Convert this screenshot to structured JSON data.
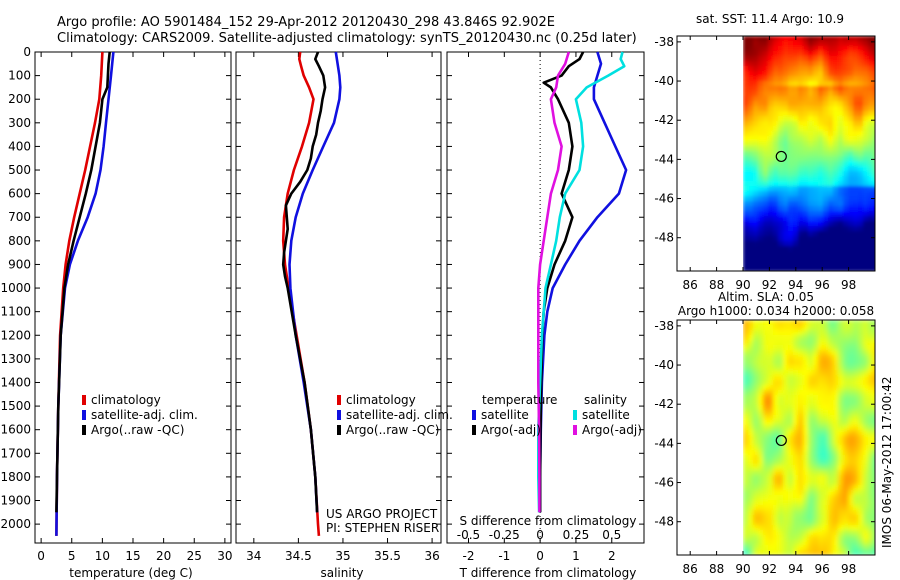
{
  "header": {
    "line1": "Argo profile: AO 5901484_152 29-Apr-2012 20120430_298 43.846S 92.902E",
    "line2": "Climatology: CARS2009. Satellite-adjusted climatology: synTS_20120430.nc (0.25d later)"
  },
  "colors": {
    "climatology": "#e00000",
    "satellite": "#1010e0",
    "argo": "#000000",
    "sat_s": "#00e0e0",
    "argo_s": "#e010e0"
  },
  "chart_data": [
    {
      "id": "temperature",
      "type": "line",
      "xlabel": "temperature (deg C)",
      "xlim": [
        -1,
        31
      ],
      "xticks": [
        "0",
        "5",
        "10",
        "15",
        "20",
        "25",
        "30"
      ],
      "xtick_values": [
        0,
        5,
        10,
        15,
        20,
        25,
        30
      ],
      "ylim": [
        2080,
        0
      ],
      "yticks": [
        "0",
        "100",
        "200",
        "300",
        "400",
        "500",
        "600",
        "700",
        "800",
        "900",
        "1000",
        "1100",
        "1200",
        "1300",
        "1400",
        "1500",
        "1600",
        "1700",
        "1800",
        "1900",
        "2000"
      ],
      "ytick_values": [
        0,
        100,
        200,
        300,
        400,
        500,
        600,
        700,
        800,
        900,
        1000,
        1100,
        1200,
        1300,
        1400,
        1500,
        1600,
        1700,
        1800,
        1900,
        2000
      ],
      "legend": [
        "climatology",
        "satellite-adj. clim.",
        "Argo(..raw -QC)"
      ],
      "series": [
        {
          "name": "climatology",
          "color": "#e00000",
          "depth": [
            0,
            50,
            100,
            200,
            300,
            400,
            500,
            600,
            700,
            800,
            900,
            1000,
            1200,
            1500,
            1800,
            2050
          ],
          "x": [
            10.0,
            9.9,
            9.8,
            9.5,
            8.8,
            8.0,
            7.2,
            6.3,
            5.4,
            4.6,
            4.0,
            3.6,
            3.1,
            2.8,
            2.6,
            2.5
          ]
        },
        {
          "name": "satellite-adj. clim.",
          "color": "#1010e0",
          "depth": [
            0,
            50,
            100,
            200,
            300,
            400,
            500,
            600,
            700,
            800,
            900,
            1000,
            1200,
            1500,
            1800,
            2050
          ],
          "x": [
            11.8,
            11.6,
            11.4,
            11.0,
            10.6,
            10.2,
            9.7,
            8.9,
            7.6,
            6.0,
            4.7,
            3.9,
            3.2,
            2.8,
            2.6,
            2.5
          ]
        },
        {
          "name": "Argo(..raw -QC)",
          "color": "#000000",
          "depth": [
            0,
            50,
            100,
            150,
            200,
            300,
            400,
            500,
            600,
            700,
            800,
            900,
            1000,
            1200,
            1500,
            1800,
            1950
          ],
          "x": [
            11.2,
            11.0,
            10.9,
            10.8,
            10.0,
            9.6,
            8.9,
            8.2,
            7.3,
            6.3,
            5.3,
            4.4,
            3.8,
            3.2,
            2.8,
            2.6,
            2.5
          ]
        }
      ]
    },
    {
      "id": "salinity",
      "type": "line",
      "xlabel": "salinity",
      "xlim": [
        33.8,
        36.1
      ],
      "xticks": [
        "34",
        "34.5",
        "35",
        "35.5",
        "36"
      ],
      "xtick_values": [
        34,
        34.5,
        35,
        35.5,
        36
      ],
      "ylim": [
        2080,
        0
      ],
      "legend": [
        "climatology",
        "satellite-adj. clim.",
        "Argo(..raw -QC)"
      ],
      "annotation": [
        "US ARGO PROJECT",
        "PI: STEPHEN RISER"
      ],
      "series": [
        {
          "name": "climatology",
          "color": "#e00000",
          "depth": [
            0,
            30,
            60,
            100,
            150,
            200,
            300,
            400,
            500,
            600,
            700,
            800,
            900,
            1000,
            1200,
            1400,
            1600,
            1800,
            2000,
            2050
          ],
          "x": [
            34.52,
            34.51,
            34.53,
            34.56,
            34.62,
            34.67,
            34.62,
            34.54,
            34.45,
            34.38,
            34.34,
            34.33,
            34.35,
            34.39,
            34.48,
            34.57,
            34.64,
            34.69,
            34.72,
            34.73
          ]
        },
        {
          "name": "satellite-adj. clim.",
          "color": "#1010e0",
          "depth": [
            0,
            50,
            100,
            150,
            200,
            300,
            400,
            500,
            600,
            700,
            800,
            900,
            1000,
            1200,
            1400,
            1600,
            1800,
            1950
          ],
          "x": [
            34.92,
            34.94,
            34.96,
            34.97,
            34.96,
            34.9,
            34.78,
            34.66,
            34.55,
            34.47,
            34.42,
            34.4,
            34.41,
            34.47,
            34.56,
            34.64,
            34.69,
            34.71
          ]
        },
        {
          "name": "Argo(..raw -QC)",
          "color": "#000000",
          "depth": [
            0,
            30,
            60,
            100,
            150,
            200,
            250,
            300,
            350,
            400,
            450,
            500,
            550,
            600,
            650,
            700,
            750,
            800,
            850,
            900,
            950,
            1000,
            1200,
            1400,
            1600,
            1800,
            1950
          ],
          "x": [
            34.72,
            34.69,
            34.73,
            34.78,
            34.8,
            34.77,
            34.75,
            34.72,
            34.7,
            34.66,
            34.64,
            34.6,
            34.52,
            34.42,
            34.36,
            34.37,
            34.38,
            34.36,
            34.34,
            34.33,
            34.35,
            34.38,
            34.47,
            34.57,
            34.64,
            34.69,
            34.71
          ]
        }
      ]
    },
    {
      "id": "differences",
      "type": "line",
      "xlabel": "T difference from climatology",
      "xlabel2": "S difference from climatology",
      "xlim": [
        -2.6,
        2.9
      ],
      "xticks": [
        "-2",
        "-1",
        "0",
        "1",
        "2"
      ],
      "xtick_values": [
        -2,
        -1,
        0,
        1,
        2
      ],
      "xticks2": [
        "-0.5",
        "-0.25",
        "0",
        "0.25",
        "0.5"
      ],
      "xtick2_values": [
        -0.5,
        -0.25,
        0,
        0.25,
        0.5
      ],
      "ylim": [
        2080,
        0
      ],
      "legend_titles": [
        "temperature",
        "salinity"
      ],
      "legend_t": [
        "satellite",
        "Argo(-adj)"
      ],
      "legend_s": [
        "satellite",
        "Argo(-adj)"
      ],
      "series": [
        {
          "name": "T satellite",
          "color": "#1010e0",
          "depth": [
            0,
            50,
            100,
            150,
            200,
            300,
            400,
            500,
            600,
            700,
            800,
            900,
            1000,
            1100,
            1200,
            1400,
            1600,
            1800,
            1950
          ],
          "x": [
            1.6,
            1.7,
            1.6,
            1.5,
            1.5,
            1.8,
            2.1,
            2.4,
            2.2,
            1.6,
            1.1,
            0.7,
            0.35,
            0.2,
            0.12,
            0.05,
            0.02,
            0.0,
            0.0
          ]
        },
        {
          "name": "T Argo(-adj)",
          "color": "#000000",
          "depth": [
            0,
            30,
            60,
            100,
            130,
            150,
            200,
            300,
            400,
            500,
            600,
            700,
            800,
            900,
            1000,
            1100,
            1200,
            1400,
            1600,
            1800,
            1950
          ],
          "x": [
            1.2,
            1.1,
            0.8,
            0.6,
            0.1,
            0.3,
            0.5,
            0.8,
            0.9,
            0.8,
            0.6,
            0.9,
            0.7,
            0.4,
            0.2,
            0.1,
            0.06,
            0.03,
            0.01,
            0.0,
            0.0
          ]
        },
        {
          "name": "S satellite",
          "color": "#00e0e0",
          "depth": [
            0,
            30,
            60,
            100,
            150,
            200,
            300,
            400,
            500,
            600,
            700,
            800,
            900,
            1000,
            1200,
            1400,
            1600,
            1800,
            1950
          ],
          "x": [
            2.3,
            2.25,
            2.35,
            1.9,
            1.3,
            1.0,
            1.15,
            1.2,
            1.1,
            0.7,
            0.55,
            0.45,
            0.3,
            0.15,
            0.05,
            0.0,
            -0.05,
            -0.05,
            -0.03
          ]
        },
        {
          "name": "S Argo(-adj)",
          "color": "#e010e0",
          "depth": [
            0,
            50,
            100,
            150,
            200,
            300,
            400,
            500,
            600,
            700,
            800,
            900,
            1000,
            1200,
            1400,
            1600,
            1800,
            1950
          ],
          "x": [
            0.8,
            0.7,
            0.5,
            0.45,
            0.3,
            0.4,
            0.6,
            0.5,
            0.3,
            0.2,
            0.1,
            0.0,
            -0.05,
            -0.05,
            -0.05,
            -0.03,
            -0.02,
            -0.02
          ]
        }
      ]
    },
    {
      "id": "sst_map",
      "type": "heatmap",
      "title": "sat. SST: 11.4  Argo: 10.9",
      "xticks": [
        "86",
        "88",
        "90",
        "92",
        "94",
        "96",
        "98"
      ],
      "xtick_values": [
        86,
        88,
        90,
        92,
        94,
        96,
        98
      ],
      "yticks": [
        "-38",
        "-40",
        "-42",
        "-44",
        "-46",
        "-48"
      ],
      "ytick_values": [
        -38,
        -40,
        -42,
        -44,
        -46,
        -48
      ],
      "xlim": [
        85,
        100
      ],
      "ylim": [
        -49.7,
        -37.7
      ],
      "data_lon": [
        90,
        100
      ],
      "marker": {
        "lon": 92.9,
        "lat": -43.85
      }
    },
    {
      "id": "sla_map",
      "type": "heatmap",
      "title": "Altim. SLA: 0.05",
      "subtitle": "Argo h1000: 0.034 h2000: 0.058",
      "xticks": [
        "86",
        "88",
        "90",
        "92",
        "94",
        "96",
        "98"
      ],
      "xtick_values": [
        86,
        88,
        90,
        92,
        94,
        96,
        98
      ],
      "yticks": [
        "-38",
        "-40",
        "-42",
        "-44",
        "-46",
        "-48"
      ],
      "ytick_values": [
        -38,
        -40,
        -42,
        -44,
        -46,
        -48
      ],
      "xlim": [
        85,
        100
      ],
      "ylim": [
        -49.7,
        -37.7
      ],
      "data_lon": [
        90,
        100
      ],
      "marker": {
        "lon": 92.9,
        "lat": -43.85
      }
    }
  ],
  "credit": "IMOS 06-May-2012 17:00:42"
}
